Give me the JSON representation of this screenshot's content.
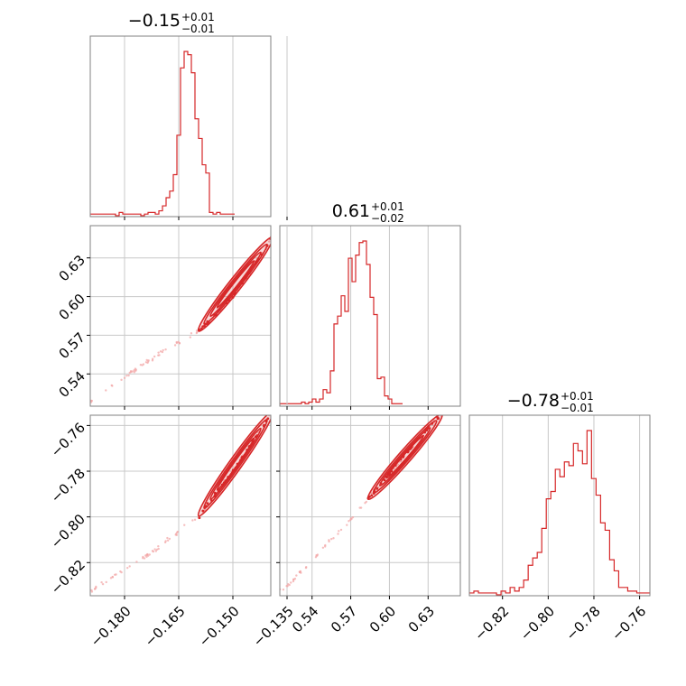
{
  "colors": {
    "series": "#d62728",
    "scatter": "#f2a3a3",
    "grid": "#c8c8c8",
    "frame": "#808080"
  },
  "chart_data": {
    "type": "corner",
    "grid": true,
    "parameters": [
      {
        "title": "−0.15",
        "title_plus": "+0.01",
        "title_minus": "−0.01",
        "median": -0.15,
        "err_plus": 0.01,
        "err_minus": 0.01,
        "range": [
          -0.1895,
          -0.1395
        ],
        "ticks": [
          -0.18,
          -0.165,
          -0.15,
          -0.135
        ],
        "tick_labels": [
          "−0.180",
          "−0.165",
          "−0.150",
          "−0.135"
        ]
      },
      {
        "title": "0.61",
        "title_plus": "+0.01",
        "title_minus": "−0.02",
        "median": 0.61,
        "err_plus": 0.01,
        "err_minus": 0.02,
        "range": [
          0.515,
          0.655
        ],
        "ticks": [
          0.54,
          0.57,
          0.6,
          0.63
        ],
        "tick_labels": [
          "0.54",
          "0.57",
          "0.60",
          "0.63"
        ]
      },
      {
        "title": "−0.78",
        "title_plus": "+0.01",
        "title_minus": "−0.01",
        "median": -0.78,
        "err_plus": 0.01,
        "err_minus": 0.01,
        "range": [
          -0.8345,
          -0.7555
        ],
        "ticks": [
          -0.82,
          -0.8,
          -0.78,
          -0.76
        ],
        "tick_labels": [
          "−0.82",
          "−0.80",
          "−0.78",
          "−0.76"
        ]
      }
    ],
    "histograms": [
      {
        "param": 0,
        "bin_start": -0.1895,
        "bin_width": 0.001,
        "counts": [
          1,
          1,
          1,
          1,
          1,
          1,
          1,
          0,
          2,
          1,
          1,
          1,
          1,
          1,
          0,
          1,
          2,
          2,
          1,
          3,
          6,
          11,
          15,
          25,
          49,
          90,
          100,
          98,
          87,
          59,
          47,
          31,
          26,
          2,
          1,
          2,
          1,
          1,
          1,
          1
        ]
      },
      {
        "param": 1,
        "bin_start": 0.515,
        "bin_width": 0.0028,
        "counts": [
          1,
          1,
          1,
          1,
          1,
          1,
          2,
          1,
          2,
          4,
          2,
          4,
          10,
          8,
          22,
          52,
          57,
          70,
          60,
          94,
          79,
          96,
          104,
          105,
          90,
          69,
          58,
          17,
          18,
          6,
          4,
          1,
          1,
          1
        ]
      },
      {
        "param": 2,
        "bin_start": -0.8345,
        "bin_width": 0.00198,
        "counts": [
          1,
          2,
          1,
          1,
          1,
          1,
          0,
          2,
          1,
          4,
          2,
          4,
          8,
          16,
          20,
          23,
          36,
          52,
          56,
          68,
          64,
          72,
          70,
          82,
          78,
          71,
          89,
          63,
          54,
          39,
          35,
          19,
          13,
          4,
          4,
          2,
          2,
          1,
          1,
          1
        ]
      }
    ],
    "pairs": [
      {
        "x_param": 0,
        "y_param": 1,
        "trend": [
          [
            -0.189,
            0.5195
          ],
          [
            -0.172,
            0.553
          ],
          [
            -0.159,
            0.574
          ],
          [
            -0.15,
            0.6
          ],
          [
            -0.141,
            0.637
          ],
          [
            -0.1395,
            0.646
          ]
        ]
      },
      {
        "x_param": 0,
        "y_param": 2,
        "trend": [
          [
            -0.189,
            -0.832
          ],
          [
            -0.172,
            -0.815
          ],
          [
            -0.159,
            -0.799
          ],
          [
            -0.15,
            -0.78
          ],
          [
            -0.141,
            -0.759
          ],
          [
            -0.1395,
            -0.754
          ]
        ]
      },
      {
        "x_param": 1,
        "y_param": 2,
        "trend": [
          [
            0.516,
            -0.833
          ],
          [
            0.545,
            -0.816
          ],
          [
            0.572,
            -0.8
          ],
          [
            0.6,
            -0.781
          ],
          [
            0.63,
            -0.761
          ],
          [
            0.652,
            -0.749
          ]
        ]
      }
    ]
  }
}
